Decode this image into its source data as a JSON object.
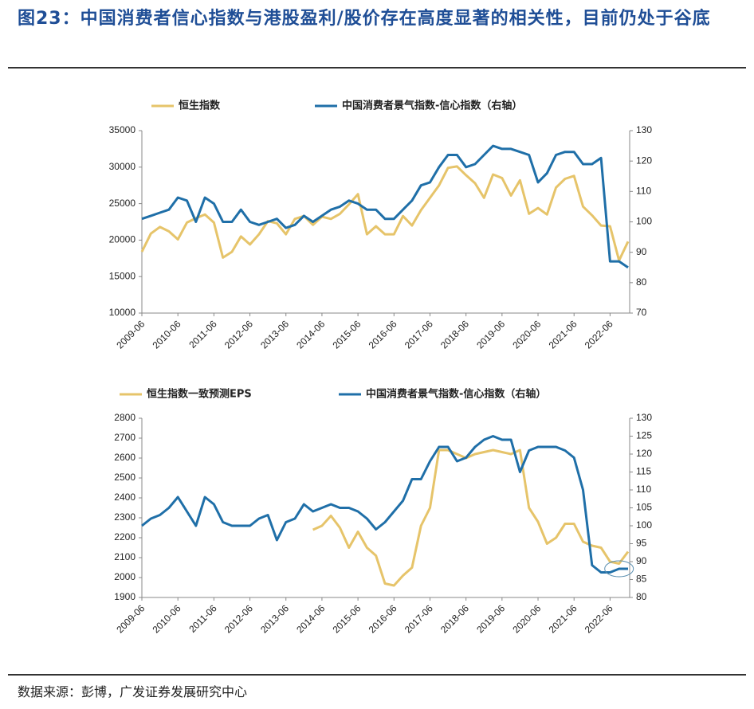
{
  "title": "图23：中国消费者信心指数与港股盈利/股价存在高度显著的相关性，目前仍处于谷底",
  "source": "数据来源：彭博，广发证券发展研究中心",
  "chart_data": [
    {
      "type": "line",
      "categories": [
        "2009-06",
        null,
        null,
        null,
        "2010-06",
        null,
        null,
        null,
        "2011-06",
        null,
        null,
        null,
        "2012-06",
        null,
        null,
        null,
        "2013-06",
        null,
        null,
        null,
        "2014-06",
        null,
        null,
        null,
        "2015-06",
        null,
        null,
        null,
        "2016-06",
        null,
        null,
        null,
        "2017-06",
        null,
        null,
        null,
        "2018-06",
        null,
        null,
        null,
        "2019-06",
        null,
        null,
        null,
        "2020-06",
        null,
        null,
        null,
        "2021-06",
        null,
        null,
        null,
        "2022-06",
        null,
        null
      ],
      "series": [
        {
          "name": "恒生指数",
          "color": "#e6c46a",
          "axis": "y",
          "values": [
            18400,
            20900,
            21800,
            21200,
            20100,
            22400,
            23000,
            23500,
            22400,
            17600,
            18400,
            20500,
            19400,
            20800,
            22600,
            22300,
            20800,
            22900,
            23300,
            22100,
            23200,
            22900,
            23600,
            24900,
            26300,
            20800,
            21900,
            20800,
            20800,
            23300,
            22000,
            24100,
            25800,
            27500,
            29900,
            30100,
            28900,
            27800,
            25800,
            29000,
            28500,
            26100,
            28200,
            23600,
            24400,
            23500,
            27200,
            28400,
            28800,
            24600,
            23400,
            22000,
            21900,
            17200,
            19800
          ]
        },
        {
          "name": "中国消费者景气指数-信心指数（右轴）",
          "color": "#1f6fa8",
          "axis": "y2",
          "values": [
            101,
            102,
            103,
            104,
            108,
            107,
            100,
            108,
            106,
            100,
            100,
            104,
            100,
            99,
            100,
            101,
            98,
            99,
            102,
            100,
            102,
            104,
            105,
            107,
            106,
            104,
            104,
            101,
            101,
            104,
            107,
            112,
            113,
            118,
            122,
            122,
            118,
            119,
            122,
            125,
            124,
            124,
            123,
            122,
            113,
            116,
            122,
            123,
            123,
            119,
            119,
            121,
            87,
            87,
            85
          ]
        }
      ],
      "ylim": [
        10000,
        35000
      ],
      "yticks": [
        10000,
        15000,
        20000,
        25000,
        30000,
        35000
      ],
      "y2lim": [
        70,
        130
      ],
      "y2ticks": [
        70,
        80,
        90,
        100,
        110,
        120,
        130
      ]
    },
    {
      "type": "line",
      "categories": [
        "2009-06",
        null,
        null,
        null,
        "2010-06",
        null,
        null,
        null,
        "2011-06",
        null,
        null,
        null,
        "2012-06",
        null,
        null,
        null,
        "2013-06",
        null,
        null,
        null,
        "2014-06",
        null,
        null,
        null,
        "2015-06",
        null,
        null,
        null,
        "2016-06",
        null,
        null,
        null,
        "2017-06",
        null,
        null,
        null,
        "2018-06",
        null,
        null,
        null,
        "2019-06",
        null,
        null,
        null,
        "2020-06",
        null,
        null,
        null,
        "2021-06",
        null,
        null,
        null,
        "2022-06",
        null,
        null
      ],
      "series": [
        {
          "name": "恒生指数一致预测EPS",
          "color": "#e6c46a",
          "axis": "y",
          "values": [
            null,
            null,
            null,
            null,
            null,
            null,
            null,
            null,
            null,
            null,
            null,
            null,
            null,
            null,
            null,
            null,
            null,
            null,
            null,
            2240,
            2260,
            2310,
            2250,
            2150,
            2230,
            2150,
            2110,
            1970,
            1960,
            2010,
            2050,
            2260,
            2350,
            2640,
            2640,
            2620,
            2600,
            2620,
            2630,
            2640,
            2630,
            2620,
            2640,
            2350,
            2280,
            2170,
            2200,
            2270,
            2270,
            2180,
            2160,
            2150,
            2080,
            2070,
            2130
          ]
        },
        {
          "name": "中国消费者景气指数-信心指数（右轴）",
          "color": "#1f6fa8",
          "axis": "y2",
          "values": [
            100,
            102,
            103,
            105,
            108,
            104,
            100,
            108,
            106,
            101,
            100,
            100,
            100,
            102,
            103,
            96,
            101,
            102,
            106,
            104,
            105,
            106,
            105,
            105,
            104,
            102,
            99,
            101,
            104,
            107,
            113,
            113,
            118,
            122,
            122,
            118,
            119,
            122,
            124,
            125,
            124,
            124,
            115,
            121,
            122,
            122,
            122,
            121,
            119,
            110,
            89,
            87,
            87,
            88,
            88
          ]
        }
      ],
      "ylim": [
        1900,
        2800
      ],
      "yticks": [
        1900,
        2000,
        2100,
        2200,
        2300,
        2400,
        2500,
        2600,
        2700,
        2800
      ],
      "y2lim": [
        80,
        130
      ],
      "y2ticks": [
        80,
        85,
        90,
        95,
        100,
        105,
        110,
        115,
        120,
        125,
        130
      ]
    }
  ]
}
